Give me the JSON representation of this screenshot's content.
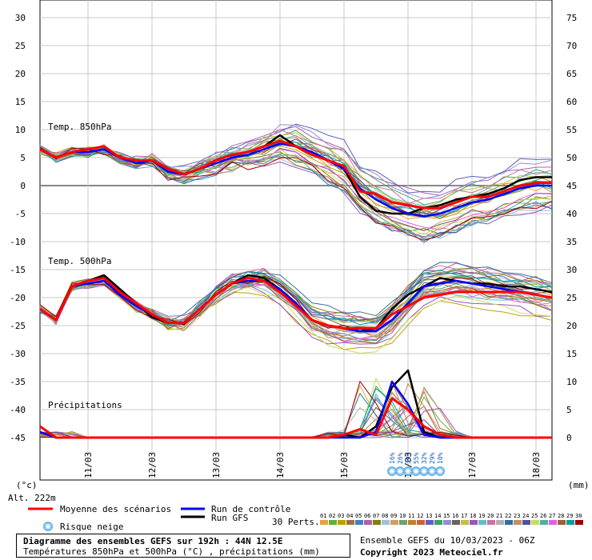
{
  "chart_data": {
    "type": "line",
    "left_axis": {
      "unit": "(°c)",
      "ticks": [
        30,
        25,
        20,
        15,
        10,
        5,
        0,
        -5,
        -10,
        -15,
        -20,
        -25,
        -30,
        -35,
        -40,
        -45
      ],
      "range": [
        -45,
        30
      ]
    },
    "right_axis": {
      "unit": "(mm)",
      "ticks": [
        75,
        70,
        65,
        60,
        55,
        50,
        45,
        40,
        35,
        30,
        25,
        20,
        15,
        10,
        5,
        0
      ],
      "range": [
        0,
        75
      ]
    },
    "x_ticks": [
      "11/03",
      "12/03",
      "13/03",
      "14/03",
      "15/03",
      "16/03",
      "17/03",
      "18/03"
    ],
    "altitude": "Alt. 222m",
    "panels": [
      {
        "label": "Temp. 850hPa"
      },
      {
        "label": "Temp. 500hPa"
      },
      {
        "label": "Précipitations"
      }
    ],
    "x_hours": [
      0,
      6,
      12,
      18,
      24,
      30,
      36,
      42,
      48,
      54,
      60,
      66,
      72,
      78,
      84,
      90,
      96,
      102,
      108,
      114,
      120,
      126,
      132,
      138,
      144,
      150,
      156,
      162,
      168,
      174,
      180,
      186,
      192
    ],
    "series": [
      {
        "name": "Moyenne des scénarios",
        "color": "#ff0000",
        "t850": [
          6.5,
          5,
          6,
          6.5,
          7,
          5,
          4.5,
          4.5,
          3,
          2,
          3,
          4.5,
          5.5,
          6,
          7,
          8,
          7,
          5.5,
          4.5,
          3.5,
          -1,
          -1.5,
          -3,
          -3.5,
          -4,
          -4,
          -3,
          -2,
          -2,
          -1,
          0,
          0.5,
          0.5
        ],
        "t500": [
          -22,
          -24,
          -18,
          -17,
          -16.5,
          -19,
          -21,
          -23,
          -24.5,
          -24.5,
          -22,
          -19.5,
          -17.5,
          -16.5,
          -17,
          -19,
          -21.5,
          -24,
          -25,
          -25.5,
          -25.5,
          -25.5,
          -23,
          -21.5,
          -20,
          -19.5,
          -19,
          -19,
          -19,
          -19,
          -19,
          -19.5,
          -20
        ],
        "precip": [
          2,
          0,
          0,
          0,
          0,
          0,
          0,
          0,
          0,
          0,
          0,
          0,
          0,
          0,
          0,
          0,
          0,
          0,
          0,
          0.5,
          1.5,
          0.5,
          7,
          5,
          2,
          0.5,
          0,
          0,
          0,
          0,
          0,
          0,
          0
        ]
      },
      {
        "name": "Run de contrôle",
        "color": "#0000ff",
        "t850": [
          6.5,
          5,
          6,
          6,
          6.5,
          5,
          4,
          4.5,
          2.5,
          2,
          3,
          4,
          5,
          5.5,
          6.5,
          7.5,
          7,
          6,
          4.5,
          3,
          -0.5,
          -2.5,
          -4,
          -5,
          -5.5,
          -5,
          -4,
          -3,
          -2.5,
          -1.5,
          -0.5,
          0,
          0
        ],
        "t500": [
          -22,
          -24,
          -18,
          -17.5,
          -17,
          -19.5,
          -21.5,
          -23,
          -24.5,
          -24.5,
          -22,
          -19.5,
          -17.5,
          -17,
          -17,
          -18.5,
          -21,
          -24,
          -25,
          -25.5,
          -26,
          -26,
          -24,
          -21,
          -18,
          -17.5,
          -17,
          -17.5,
          -18,
          -18.5,
          -19,
          -19.5,
          -20
        ],
        "precip": [
          1,
          0,
          0,
          0,
          0,
          0,
          0,
          0,
          0,
          0,
          0,
          0,
          0,
          0,
          0,
          0,
          0,
          0,
          0,
          0,
          0,
          1,
          10,
          6,
          0.5,
          0,
          0,
          0,
          0,
          0,
          0,
          0,
          0
        ]
      },
      {
        "name": "Run GFS",
        "color": "#000000",
        "t850": [
          6.5,
          5,
          6,
          6.5,
          7,
          5,
          4.5,
          4.5,
          2.5,
          2,
          3,
          4.5,
          5.5,
          6,
          7,
          9,
          7,
          5.5,
          4.5,
          3,
          -2,
          -4.5,
          -5,
          -5,
          -4,
          -3.5,
          -2.5,
          -2,
          -1.5,
          -0.5,
          1,
          1.5,
          1.5
        ],
        "t500": [
          -22,
          -24,
          -18,
          -17,
          -16,
          -18.5,
          -21,
          -23.5,
          -24.5,
          -24.5,
          -22,
          -19.5,
          -17.5,
          -16,
          -16.5,
          -18.5,
          -21.5,
          -24,
          -25,
          -25.5,
          -26,
          -25.5,
          -22,
          -19.5,
          -18,
          -16.5,
          -17,
          -17.5,
          -17.5,
          -18,
          -18,
          -18.5,
          -19
        ],
        "precip": [
          1,
          0,
          0,
          0,
          0,
          0,
          0,
          0,
          0,
          0,
          0,
          0,
          0,
          0,
          0,
          0,
          0,
          0,
          0,
          0.5,
          0,
          2,
          9,
          12,
          1,
          0,
          0,
          0,
          0,
          0,
          0,
          0,
          0
        ]
      }
    ],
    "snow_risk": [
      {
        "x": 132,
        "label": "16%"
      },
      {
        "x": 135,
        "label": "26%"
      },
      {
        "x": 138,
        "label": "39%"
      },
      {
        "x": 141,
        "label": "55%"
      },
      {
        "x": 144,
        "label": "32%"
      },
      {
        "x": 147,
        "label": "29%"
      },
      {
        "x": 150,
        "label": "10%"
      }
    ]
  },
  "legend": {
    "mean": "Moyenne des scénarios",
    "control": "Run de contrôle",
    "gfs": "Run GFS",
    "snow": "Risque neige",
    "perts_label": "30 Perts.",
    "perts": [
      "01",
      "02",
      "03",
      "04",
      "05",
      "06",
      "07",
      "08",
      "09",
      "10",
      "11",
      "12",
      "13",
      "14",
      "15",
      "16",
      "17",
      "18",
      "19",
      "20",
      "21",
      "22",
      "23",
      "24",
      "25",
      "26",
      "27",
      "28",
      "29",
      "30"
    ],
    "pert_colors": [
      "#e8a040",
      "#60b040",
      "#c0a000",
      "#a07040",
      "#4080c0",
      "#b060b0",
      "#808000",
      "#a0c0e0",
      "#d0a060",
      "#70a070",
      "#c08030",
      "#d06030",
      "#6060c0",
      "#40a060",
      "#9090d0",
      "#706060",
      "#c0c040",
      "#a050c0",
      "#60c0c0",
      "#d070a0",
      "#b0b0b0",
      "#3070a0",
      "#c09060",
      "#5050a0",
      "#c0e060",
      "#50b0a0",
      "#e060e0",
      "#a06030",
      "#00a0a0",
      "#a00000"
    ]
  },
  "footer": {
    "title": "Diagramme des ensembles GEFS sur 192h : 44N 12.5E",
    "subtitle": "Températures 850hPa et 500hPa (°C) , précipitations (mm)",
    "ensemble": "Ensemble GEFS du 10/03/2023 - 06Z",
    "copyright": "Copyright 2023 Meteociel.fr"
  }
}
